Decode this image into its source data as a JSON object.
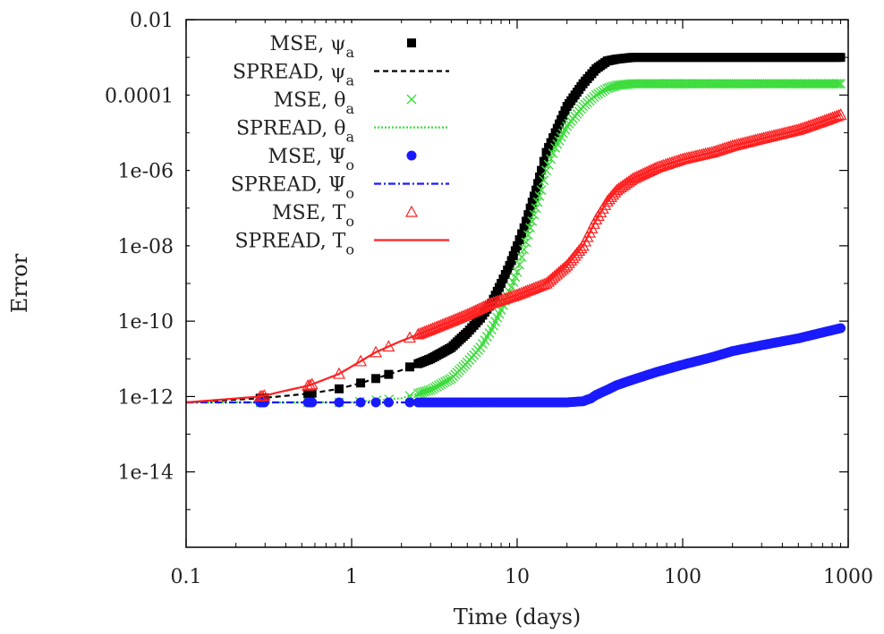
{
  "chart_data": {
    "type": "scatter",
    "title": "",
    "xlabel": "Time (days)",
    "ylabel": "Error",
    "xscale": "log",
    "yscale": "log",
    "xlim": [
      0.1,
      1000
    ],
    "ylim": [
      1e-16,
      0.01
    ],
    "x_ticks": [
      {
        "value": 0.1,
        "label": "0.1"
      },
      {
        "value": 1,
        "label": "1"
      },
      {
        "value": 10,
        "label": "10"
      },
      {
        "value": 100,
        "label": "100"
      },
      {
        "value": 1000,
        "label": "1000"
      }
    ],
    "y_ticks": [
      {
        "value": 0.01,
        "label": "0.01"
      },
      {
        "value": 0.0001,
        "label": "0.0001"
      },
      {
        "value": 1e-06,
        "label": "1e-06"
      },
      {
        "value": 1e-08,
        "label": "1e-08"
      },
      {
        "value": 1e-10,
        "label": "1e-10"
      },
      {
        "value": 1e-12,
        "label": "1e-12"
      },
      {
        "value": 1e-14,
        "label": "1e-14"
      }
    ],
    "grid": false,
    "legend_position": "top-left",
    "series": [
      {
        "name": "MSE, ψa",
        "label_main": "MSE, ψ",
        "label_sub": "a",
        "kind": "marker",
        "marker": "square",
        "color": "#000000",
        "x": [
          0.1,
          0.28,
          0.56,
          0.84,
          1.1,
          1.4,
          2,
          3,
          4,
          5,
          6,
          7,
          8,
          9,
          10,
          11,
          12,
          13,
          14,
          15,
          17,
          20,
          25,
          30,
          35,
          40,
          50,
          70,
          100,
          200,
          300,
          500,
          700,
          900
        ],
        "y": [
          7e-13,
          9e-13,
          1.2e-12,
          1.6e-12,
          2.2e-12,
          3e-12,
          5e-12,
          1e-11,
          2e-11,
          5e-11,
          1.2e-10,
          3e-10,
          1e-09,
          3e-09,
          1e-08,
          3e-08,
          1e-07,
          3e-07,
          1e-06,
          3e-06,
          1e-05,
          5e-05,
          0.0002,
          0.0005,
          0.0008,
          0.0009,
          0.001,
          0.001,
          0.001,
          0.001,
          0.001,
          0.001,
          0.001,
          0.001
        ]
      },
      {
        "name": "SPREAD, ψa",
        "label_main": "SPREAD, ψ",
        "label_sub": "a",
        "kind": "line",
        "dash": "6,4",
        "color": "#000000",
        "x": [
          0.1,
          0.28,
          0.56,
          0.84,
          1.1,
          1.4,
          2,
          3,
          4,
          5,
          6,
          7,
          8,
          9,
          10,
          11,
          12,
          13,
          14,
          15,
          17,
          20,
          25,
          30,
          35,
          40,
          50,
          70,
          100,
          200,
          300,
          500,
          700,
          900
        ],
        "y": [
          7e-13,
          9e-13,
          1.2e-12,
          1.6e-12,
          2.2e-12,
          3e-12,
          5e-12,
          1e-11,
          2e-11,
          5e-11,
          1.2e-10,
          3e-10,
          1e-09,
          3e-09,
          1e-08,
          3e-08,
          1e-07,
          3e-07,
          1e-06,
          3e-06,
          1e-05,
          5e-05,
          0.0002,
          0.0005,
          0.0008,
          0.0009,
          0.001,
          0.001,
          0.001,
          0.001,
          0.001,
          0.001,
          0.001,
          0.001
        ]
      },
      {
        "name": "MSE, θa",
        "label_main": "MSE, θ",
        "label_sub": "a",
        "kind": "marker",
        "marker": "x",
        "color": "#3ddc3d",
        "x": [
          0.1,
          0.5,
          1,
          2,
          3,
          4,
          5,
          6,
          7,
          8,
          9,
          10,
          11,
          12,
          13,
          14,
          15,
          17,
          20,
          25,
          30,
          35,
          40,
          50,
          70,
          100,
          200,
          300,
          500,
          700,
          900
        ],
        "y": [
          7e-13,
          7e-13,
          7e-13,
          9e-13,
          1.5e-12,
          3e-12,
          8e-12,
          2e-11,
          6e-11,
          2e-10,
          6e-10,
          2e-09,
          8e-09,
          3e-08,
          1e-07,
          3e-07,
          1e-06,
          4e-06,
          1.5e-05,
          5e-05,
          0.0001,
          0.00015,
          0.00018,
          0.0002,
          0.0002,
          0.0002,
          0.0002,
          0.0002,
          0.0002,
          0.0002,
          0.0002
        ]
      },
      {
        "name": "SPREAD, θa",
        "label_main": "SPREAD, θ",
        "label_sub": "a",
        "kind": "line",
        "dash": "2,2",
        "color": "#3ddc3d",
        "x": [
          0.1,
          0.5,
          1,
          2,
          3,
          4,
          5,
          6,
          7,
          8,
          9,
          10,
          11,
          12,
          13,
          14,
          15,
          17,
          20,
          25,
          30,
          35,
          40,
          50,
          70,
          100,
          200,
          300,
          500,
          700,
          900
        ],
        "y": [
          7e-13,
          7e-13,
          7e-13,
          9e-13,
          1.5e-12,
          3e-12,
          8e-12,
          2e-11,
          6e-11,
          2e-10,
          6e-10,
          2e-09,
          8e-09,
          3e-08,
          1e-07,
          3e-07,
          1e-06,
          4e-06,
          1.5e-05,
          5e-05,
          0.0001,
          0.00015,
          0.00018,
          0.0002,
          0.0002,
          0.0002,
          0.0002,
          0.0002,
          0.0002,
          0.0002,
          0.0002
        ]
      },
      {
        "name": "MSE, Ψo",
        "label_main": "MSE, Ψ",
        "label_sub": "o",
        "kind": "marker",
        "marker": "circle",
        "color": "#1a1aff",
        "x": [
          0.1,
          0.28,
          0.56,
          0.84,
          1.1,
          1.4,
          2,
          3,
          5,
          10,
          20,
          25,
          28,
          30,
          35,
          40,
          50,
          70,
          100,
          150,
          200,
          300,
          500,
          700,
          900
        ],
        "y": [
          7e-13,
          7e-13,
          7e-13,
          7e-13,
          7e-13,
          7e-13,
          7e-13,
          7e-13,
          7e-13,
          7e-13,
          7e-13,
          7.5e-13,
          9e-13,
          1.1e-12,
          1.5e-12,
          2e-12,
          2.8e-12,
          4.5e-12,
          7e-12,
          1.1e-11,
          1.6e-11,
          2.3e-11,
          3.5e-11,
          5e-11,
          6.5e-11
        ]
      },
      {
        "name": "SPREAD, Ψo",
        "label_main": "SPREAD, Ψ",
        "label_sub": "o",
        "kind": "line",
        "dash": "8,3,2,3",
        "color": "#1a1aff",
        "x": [
          0.1,
          0.28,
          0.56,
          0.84,
          1.1,
          1.4,
          2,
          3,
          5,
          10,
          20,
          25,
          28,
          30,
          35,
          40,
          50,
          70,
          100,
          150,
          200,
          300,
          500,
          700,
          900
        ],
        "y": [
          7e-13,
          7e-13,
          7e-13,
          7e-13,
          7e-13,
          7e-13,
          7e-13,
          7e-13,
          7e-13,
          7e-13,
          7e-13,
          7.5e-13,
          9e-13,
          1.1e-12,
          1.5e-12,
          2e-12,
          2.8e-12,
          4.5e-12,
          7e-12,
          1.1e-11,
          1.6e-11,
          2.3e-11,
          3.5e-11,
          5e-11,
          6.5e-11
        ]
      },
      {
        "name": "MSE, To",
        "label_main": "MSE, T",
        "label_sub": "o",
        "kind": "marker",
        "marker": "triangle",
        "color": "#ff2020",
        "x": [
          0.1,
          0.28,
          0.56,
          0.84,
          1.1,
          1.4,
          2,
          3,
          4,
          5,
          7,
          10,
          15,
          20,
          25,
          30,
          35,
          40,
          50,
          70,
          100,
          150,
          200,
          300,
          500,
          700,
          900
        ],
        "y": [
          7e-13,
          1e-12,
          2e-12,
          4e-12,
          8e-12,
          1.5e-11,
          3e-11,
          6e-11,
          1e-10,
          1.5e-10,
          3e-10,
          5e-10,
          1e-09,
          3e-09,
          1e-08,
          5e-08,
          1.5e-07,
          3e-07,
          6e-07,
          1.2e-06,
          2e-06,
          3e-06,
          4.5e-06,
          7e-06,
          1.2e-05,
          2e-05,
          3e-05
        ]
      },
      {
        "name": "SPREAD, To",
        "label_main": "SPREAD, T",
        "label_sub": "o",
        "kind": "line",
        "dash": "",
        "color": "#ff2020",
        "x": [
          0.1,
          0.28,
          0.56,
          0.84,
          1.1,
          1.4,
          2,
          3,
          4,
          5,
          7,
          10,
          15,
          20,
          25,
          30,
          35,
          40,
          50,
          70,
          100,
          150,
          200,
          300,
          500,
          700,
          900
        ],
        "y": [
          7e-13,
          1e-12,
          2e-12,
          4e-12,
          8e-12,
          1.5e-11,
          3e-11,
          6e-11,
          1e-10,
          1.5e-10,
          3e-10,
          5e-10,
          1e-09,
          3e-09,
          1e-08,
          5e-08,
          1.5e-07,
          3e-07,
          6e-07,
          1.2e-06,
          2e-06,
          3e-06,
          4.5e-06,
          7e-06,
          1.2e-05,
          2e-05,
          3e-05
        ]
      }
    ]
  }
}
